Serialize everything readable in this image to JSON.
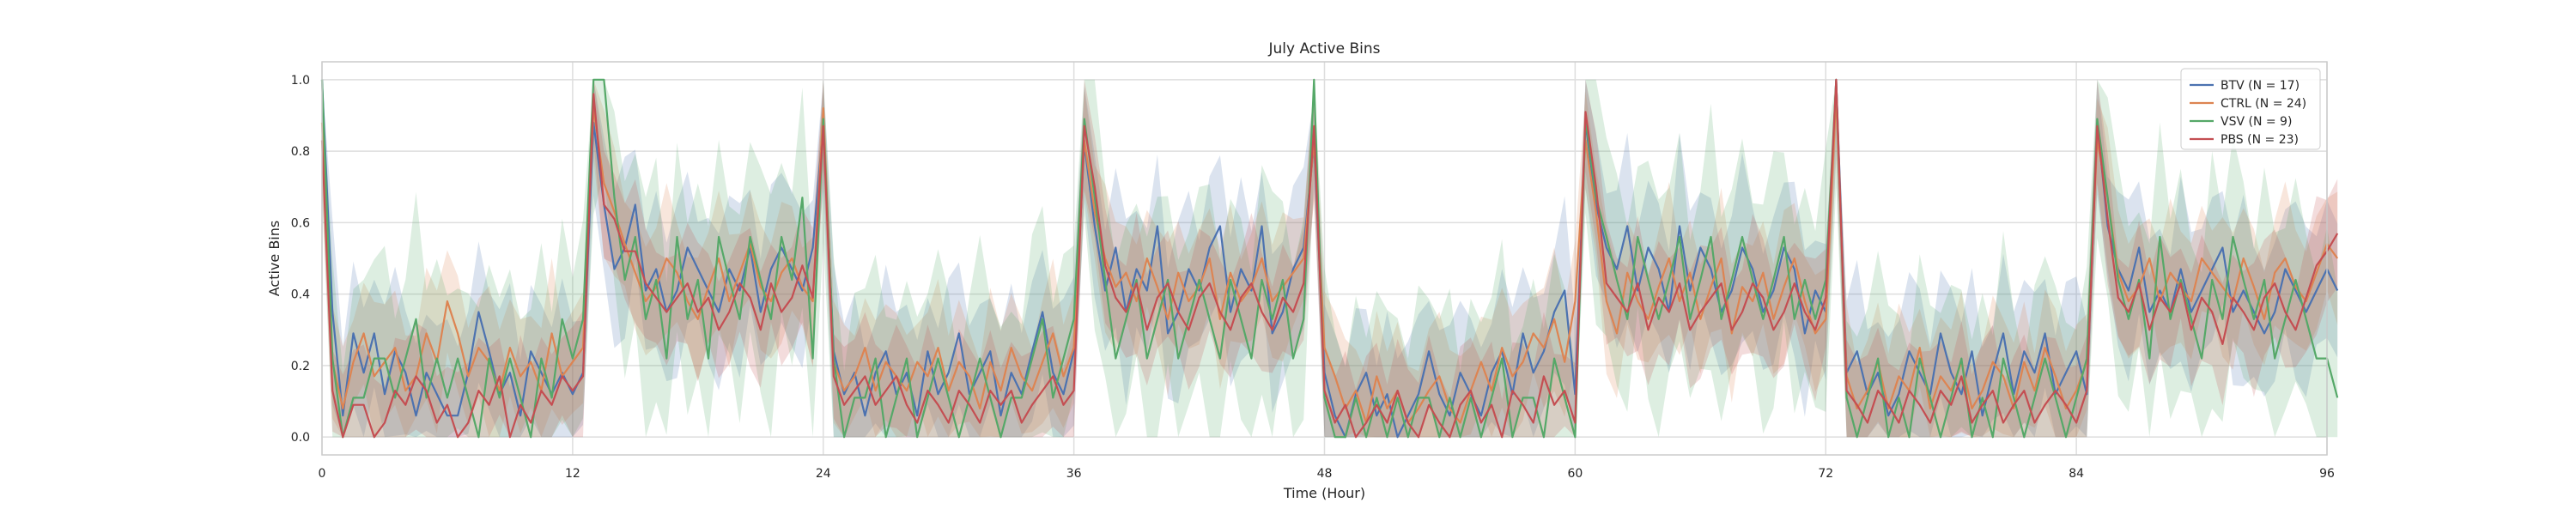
{
  "chart_data": {
    "type": "line",
    "title": "July Active Bins",
    "xlabel": "Time (Hour)",
    "ylabel": "Active Bins",
    "xlim": [
      0,
      96
    ],
    "ylim": [
      -0.05,
      1.05
    ],
    "xticks": [
      0,
      12,
      24,
      36,
      48,
      60,
      72,
      84,
      96
    ],
    "yticks": [
      0.0,
      0.2,
      0.4,
      0.6,
      0.8,
      1.0
    ],
    "xtick_labels": [
      "0",
      "12",
      "24",
      "36",
      "48",
      "60",
      "72",
      "84",
      "96"
    ],
    "ytick_labels": [
      "0.0",
      "0.2",
      "0.4",
      "0.6",
      "0.8",
      "1.0"
    ],
    "grid": true,
    "legend_position": "top-right",
    "x_step": 0.5,
    "series": [
      {
        "name": "BTV (N = 17)",
        "color": "#4c72b0",
        "values": [
          1.0,
          0.35,
          0.06,
          0.29,
          0.18,
          0.29,
          0.12,
          0.24,
          0.18,
          0.06,
          0.18,
          0.12,
          0.06,
          0.06,
          0.18,
          0.35,
          0.24,
          0.12,
          0.18,
          0.06,
          0.24,
          0.18,
          0.12,
          0.18,
          0.12,
          0.18,
          0.88,
          0.65,
          0.47,
          0.53,
          0.65,
          0.41,
          0.47,
          0.35,
          0.41,
          0.53,
          0.47,
          0.41,
          0.35,
          0.47,
          0.41,
          0.53,
          0.35,
          0.47,
          0.53,
          0.47,
          0.41,
          0.53,
          0.88,
          0.24,
          0.12,
          0.18,
          0.06,
          0.18,
          0.24,
          0.12,
          0.18,
          0.06,
          0.24,
          0.12,
          0.18,
          0.29,
          0.12,
          0.18,
          0.24,
          0.06,
          0.18,
          0.12,
          0.24,
          0.35,
          0.18,
          0.12,
          0.24,
          0.82,
          0.59,
          0.41,
          0.53,
          0.35,
          0.47,
          0.41,
          0.59,
          0.29,
          0.35,
          0.47,
          0.41,
          0.53,
          0.59,
          0.35,
          0.47,
          0.41,
          0.59,
          0.29,
          0.35,
          0.47,
          0.53,
          0.82,
          0.18,
          0.06,
          0.0,
          0.12,
          0.18,
          0.06,
          0.12,
          0.0,
          0.06,
          0.12,
          0.24,
          0.12,
          0.06,
          0.18,
          0.12,
          0.06,
          0.18,
          0.24,
          0.12,
          0.29,
          0.18,
          0.24,
          0.35,
          0.41,
          0.12,
          0.88,
          0.65,
          0.53,
          0.47,
          0.59,
          0.41,
          0.53,
          0.47,
          0.35,
          0.59,
          0.41,
          0.53,
          0.47,
          0.35,
          0.41,
          0.53,
          0.47,
          0.35,
          0.41,
          0.53,
          0.47,
          0.29,
          0.41,
          0.35,
          1.0,
          0.18,
          0.24,
          0.12,
          0.18,
          0.06,
          0.12,
          0.24,
          0.18,
          0.12,
          0.29,
          0.18,
          0.12,
          0.24,
          0.06,
          0.18,
          0.29,
          0.12,
          0.24,
          0.18,
          0.29,
          0.12,
          0.18,
          0.24,
          0.12,
          0.88,
          0.59,
          0.47,
          0.41,
          0.53,
          0.35,
          0.41,
          0.35,
          0.47,
          0.35,
          0.41,
          0.47,
          0.53,
          0.35,
          0.41,
          0.35,
          0.29,
          0.35,
          0.47,
          0.41,
          0.35,
          0.41,
          0.47,
          0.41
        ]
      },
      {
        "name": "CTRL (N = 24)",
        "color": "#dd8452",
        "values": [
          0.88,
          0.21,
          0.08,
          0.21,
          0.29,
          0.17,
          0.21,
          0.25,
          0.13,
          0.17,
          0.29,
          0.21,
          0.38,
          0.29,
          0.17,
          0.25,
          0.21,
          0.13,
          0.25,
          0.17,
          0.21,
          0.13,
          0.29,
          0.17,
          0.21,
          0.25,
          0.92,
          0.71,
          0.63,
          0.54,
          0.46,
          0.38,
          0.42,
          0.5,
          0.46,
          0.38,
          0.33,
          0.42,
          0.5,
          0.38,
          0.46,
          0.54,
          0.42,
          0.38,
          0.46,
          0.5,
          0.42,
          0.38,
          0.92,
          0.21,
          0.13,
          0.17,
          0.25,
          0.13,
          0.21,
          0.17,
          0.13,
          0.21,
          0.17,
          0.25,
          0.13,
          0.21,
          0.17,
          0.08,
          0.21,
          0.13,
          0.25,
          0.17,
          0.13,
          0.21,
          0.29,
          0.17,
          0.25,
          0.83,
          0.63,
          0.5,
          0.42,
          0.46,
          0.38,
          0.5,
          0.42,
          0.33,
          0.46,
          0.38,
          0.42,
          0.5,
          0.33,
          0.46,
          0.38,
          0.42,
          0.5,
          0.38,
          0.42,
          0.46,
          0.5,
          0.83,
          0.25,
          0.17,
          0.08,
          0.13,
          0.04,
          0.17,
          0.08,
          0.13,
          0.04,
          0.08,
          0.13,
          0.17,
          0.08,
          0.04,
          0.13,
          0.21,
          0.13,
          0.25,
          0.17,
          0.21,
          0.29,
          0.25,
          0.33,
          0.21,
          0.38,
          0.83,
          0.63,
          0.38,
          0.29,
          0.46,
          0.38,
          0.33,
          0.42,
          0.5,
          0.38,
          0.46,
          0.33,
          0.42,
          0.5,
          0.29,
          0.42,
          0.38,
          0.46,
          0.33,
          0.42,
          0.5,
          0.38,
          0.29,
          0.33,
          0.96,
          0.17,
          0.08,
          0.13,
          0.21,
          0.08,
          0.17,
          0.13,
          0.25,
          0.08,
          0.17,
          0.13,
          0.21,
          0.08,
          0.13,
          0.21,
          0.17,
          0.08,
          0.21,
          0.13,
          0.25,
          0.17,
          0.08,
          0.13,
          0.21,
          0.83,
          0.67,
          0.46,
          0.38,
          0.42,
          0.5,
          0.38,
          0.46,
          0.42,
          0.38,
          0.5,
          0.46,
          0.42,
          0.38,
          0.5,
          0.42,
          0.33,
          0.46,
          0.5,
          0.42,
          0.38,
          0.46,
          0.54,
          0.5
        ]
      },
      {
        "name": "VSV (N = 9)",
        "color": "#55a868",
        "values": [
          1.0,
          0.22,
          0.0,
          0.11,
          0.11,
          0.22,
          0.22,
          0.11,
          0.22,
          0.33,
          0.11,
          0.22,
          0.11,
          0.22,
          0.11,
          0.0,
          0.22,
          0.11,
          0.22,
          0.11,
          0.0,
          0.22,
          0.11,
          0.33,
          0.22,
          0.33,
          1.0,
          1.0,
          0.67,
          0.44,
          0.56,
          0.33,
          0.44,
          0.22,
          0.56,
          0.33,
          0.44,
          0.22,
          0.56,
          0.44,
          0.33,
          0.56,
          0.44,
          0.33,
          0.56,
          0.44,
          0.67,
          0.22,
          0.89,
          0.22,
          0.0,
          0.11,
          0.11,
          0.22,
          0.0,
          0.11,
          0.22,
          0.0,
          0.11,
          0.22,
          0.11,
          0.0,
          0.11,
          0.22,
          0.11,
          0.0,
          0.11,
          0.11,
          0.22,
          0.33,
          0.11,
          0.22,
          0.33,
          0.89,
          0.67,
          0.44,
          0.22,
          0.33,
          0.44,
          0.22,
          0.33,
          0.44,
          0.22,
          0.33,
          0.44,
          0.33,
          0.22,
          0.44,
          0.33,
          0.22,
          0.44,
          0.33,
          0.44,
          0.22,
          0.33,
          1.0,
          0.11,
          0.0,
          0.0,
          0.11,
          0.0,
          0.11,
          0.0,
          0.11,
          0.0,
          0.11,
          0.11,
          0.0,
          0.11,
          0.0,
          0.11,
          0.0,
          0.11,
          0.22,
          0.0,
          0.11,
          0.11,
          0.0,
          0.22,
          0.11,
          0.0,
          0.89,
          0.67,
          0.56,
          0.44,
          0.33,
          0.56,
          0.44,
          0.33,
          0.44,
          0.56,
          0.33,
          0.44,
          0.56,
          0.33,
          0.44,
          0.56,
          0.44,
          0.33,
          0.44,
          0.56,
          0.33,
          0.44,
          0.33,
          0.44,
          1.0,
          0.11,
          0.0,
          0.11,
          0.22,
          0.0,
          0.11,
          0.0,
          0.22,
          0.11,
          0.0,
          0.11,
          0.22,
          0.0,
          0.11,
          0.0,
          0.22,
          0.11,
          0.0,
          0.11,
          0.22,
          0.11,
          0.0,
          0.11,
          0.22,
          0.89,
          0.67,
          0.44,
          0.33,
          0.44,
          0.22,
          0.56,
          0.33,
          0.44,
          0.33,
          0.22,
          0.44,
          0.33,
          0.56,
          0.44,
          0.33,
          0.44,
          0.22,
          0.33,
          0.44,
          0.33,
          0.22,
          0.22,
          0.11
        ]
      },
      {
        "name": "PBS (N = 23)",
        "color": "#c44e52",
        "values": [
          0.83,
          0.13,
          0.0,
          0.09,
          0.09,
          0.0,
          0.04,
          0.13,
          0.09,
          0.17,
          0.13,
          0.04,
          0.09,
          0.0,
          0.04,
          0.13,
          0.09,
          0.17,
          0.0,
          0.09,
          0.04,
          0.13,
          0.09,
          0.17,
          0.13,
          0.17,
          0.96,
          0.65,
          0.61,
          0.52,
          0.52,
          0.43,
          0.39,
          0.35,
          0.39,
          0.43,
          0.35,
          0.39,
          0.3,
          0.35,
          0.43,
          0.39,
          0.3,
          0.43,
          0.35,
          0.39,
          0.48,
          0.39,
          0.87,
          0.17,
          0.09,
          0.13,
          0.17,
          0.09,
          0.13,
          0.17,
          0.09,
          0.04,
          0.13,
          0.09,
          0.04,
          0.13,
          0.09,
          0.04,
          0.13,
          0.09,
          0.13,
          0.04,
          0.09,
          0.13,
          0.17,
          0.09,
          0.13,
          0.87,
          0.7,
          0.48,
          0.39,
          0.35,
          0.43,
          0.3,
          0.39,
          0.43,
          0.35,
          0.3,
          0.39,
          0.43,
          0.35,
          0.3,
          0.39,
          0.43,
          0.35,
          0.3,
          0.39,
          0.35,
          0.43,
          0.87,
          0.13,
          0.04,
          0.09,
          0.0,
          0.04,
          0.09,
          0.04,
          0.13,
          0.04,
          0.0,
          0.09,
          0.04,
          0.0,
          0.09,
          0.13,
          0.04,
          0.09,
          0.0,
          0.13,
          0.09,
          0.04,
          0.17,
          0.09,
          0.13,
          0.04,
          0.91,
          0.7,
          0.43,
          0.39,
          0.35,
          0.43,
          0.3,
          0.39,
          0.35,
          0.43,
          0.3,
          0.35,
          0.39,
          0.43,
          0.3,
          0.35,
          0.43,
          0.39,
          0.3,
          0.35,
          0.43,
          0.35,
          0.3,
          0.39,
          1.0,
          0.13,
          0.09,
          0.04,
          0.13,
          0.09,
          0.04,
          0.13,
          0.09,
          0.04,
          0.13,
          0.09,
          0.17,
          0.04,
          0.09,
          0.13,
          0.04,
          0.09,
          0.13,
          0.04,
          0.09,
          0.13,
          0.09,
          0.04,
          0.13,
          0.87,
          0.61,
          0.39,
          0.35,
          0.43,
          0.3,
          0.39,
          0.35,
          0.43,
          0.3,
          0.39,
          0.35,
          0.26,
          0.39,
          0.35,
          0.3,
          0.39,
          0.43,
          0.35,
          0.3,
          0.39,
          0.48,
          0.52,
          0.57
        ]
      }
    ]
  }
}
